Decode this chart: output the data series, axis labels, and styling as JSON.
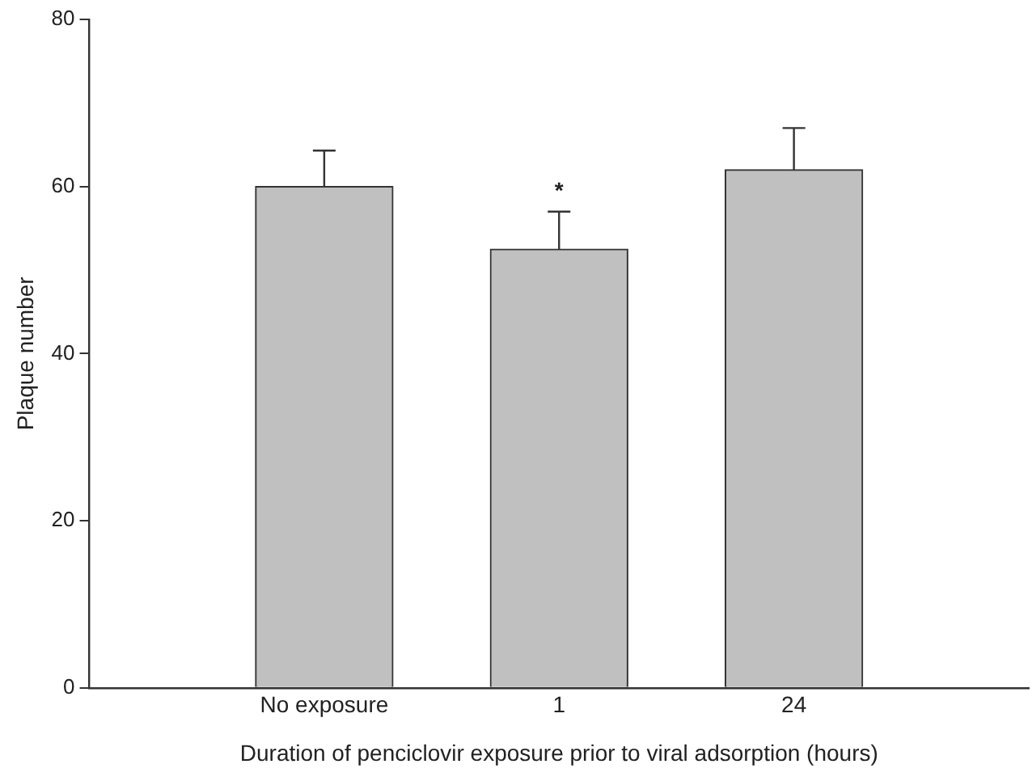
{
  "chart_data": {
    "type": "bar",
    "xlabel": "Duration of penciclovir exposure prior to viral adsorption (hours)",
    "ylabel": "Plaque number",
    "categories": [
      "No exposure",
      "1",
      "24"
    ],
    "values": [
      60,
      52.5,
      62
    ],
    "color": "#c0c0c0",
    "errors": [
      [
        60,
        64.3
      ],
      [
        52.5,
        57
      ],
      [
        62,
        67
      ]
    ],
    "ylim": [
      0,
      80
    ],
    "yticks": [
      0,
      20,
      40,
      60,
      80
    ],
    "grid": false,
    "legend": false,
    "annotations": [
      {
        "text": "*",
        "x": "1",
        "y": 57
      }
    ]
  }
}
